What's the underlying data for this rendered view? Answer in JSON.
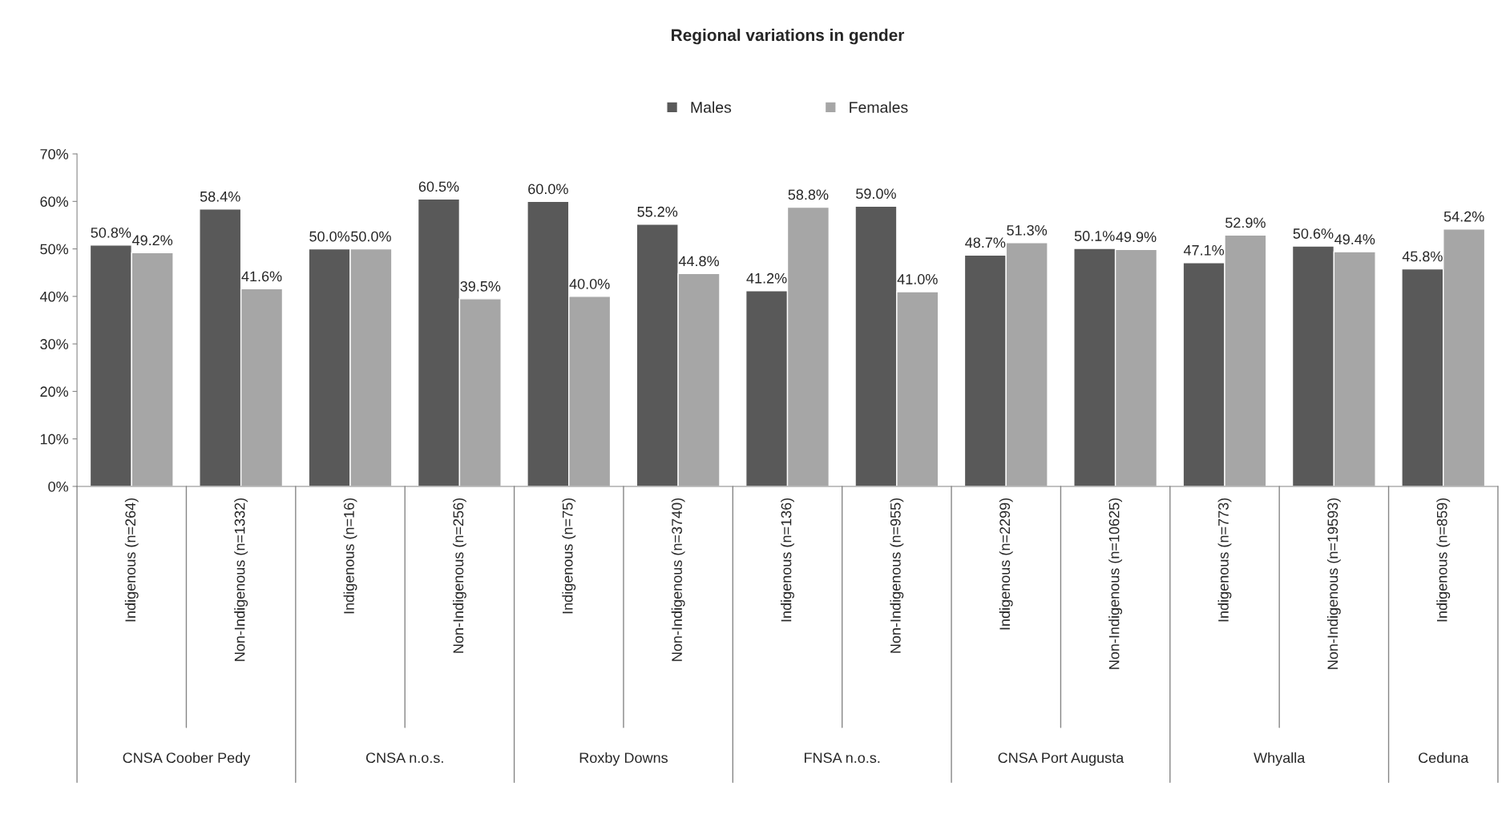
{
  "chart_data": {
    "type": "bar",
    "title": "Regional variations in gender",
    "categories": [
      "Indigenous (n=264)",
      "Non-Indigenous (n=1332)",
      "Indigenous (n=16)",
      "Non-Indigenous (n=256)",
      "Indigenous (n=75)",
      "Non-Indigenous (n=3740)",
      "Indigenous (n=136)",
      "Non-Indigenous (n=955)",
      "Indigenous (n=2299)",
      "Non-Indigenous (n=10625)",
      "Indigenous (n=773)",
      "Non-Indigenous (n=19593)",
      "Indigenous (n=859)"
    ],
    "annotations": [
      "CNSA Coober Pedy",
      "CNSA n.o.s.",
      "Roxby Downs",
      "FNSA n.o.s.",
      "CNSA Port Augusta",
      "Whyalla",
      "Ceduna"
    ],
    "series": [
      {
        "name": "Males",
        "color": "#595959",
        "values": [
          50.8,
          58.4,
          50.0,
          60.5,
          60.0,
          55.2,
          41.2,
          59.0,
          48.7,
          50.1,
          47.1,
          50.6,
          45.8
        ],
        "value_labels": [
          "50.8%",
          "58.4%",
          "50.0%",
          "60.5%",
          "60.0%",
          "55.2%",
          "41.2%",
          "59.0%",
          "48.7%",
          "50.1%",
          "47.1%",
          "50.6%",
          "45.8%"
        ]
      },
      {
        "name": "Females",
        "color": "#a6a6a6",
        "values": [
          49.2,
          41.6,
          50.0,
          39.5,
          40.0,
          44.8,
          58.8,
          41.0,
          51.3,
          49.9,
          52.9,
          49.4,
          54.2
        ],
        "value_labels": [
          "49.2%",
          "41.6%",
          "50.0%",
          "39.5%",
          "40.0%",
          "44.8%",
          "58.8%",
          "41.0%",
          "51.3%",
          "49.9%",
          "52.9%",
          "49.4%",
          "54.2%"
        ]
      }
    ],
    "ylim": [
      0,
      70
    ],
    "yticks": [
      {
        "value": 0,
        "label": "0%"
      },
      {
        "value": 10,
        "label": "10%"
      },
      {
        "value": 20,
        "label": "20%"
      },
      {
        "value": 30,
        "label": "30%"
      },
      {
        "value": 40,
        "label": "40%"
      },
      {
        "value": 50,
        "label": "50%"
      },
      {
        "value": 60,
        "label": "60%"
      },
      {
        "value": 70,
        "label": "70%"
      }
    ],
    "grid": false,
    "legend": "top"
  }
}
